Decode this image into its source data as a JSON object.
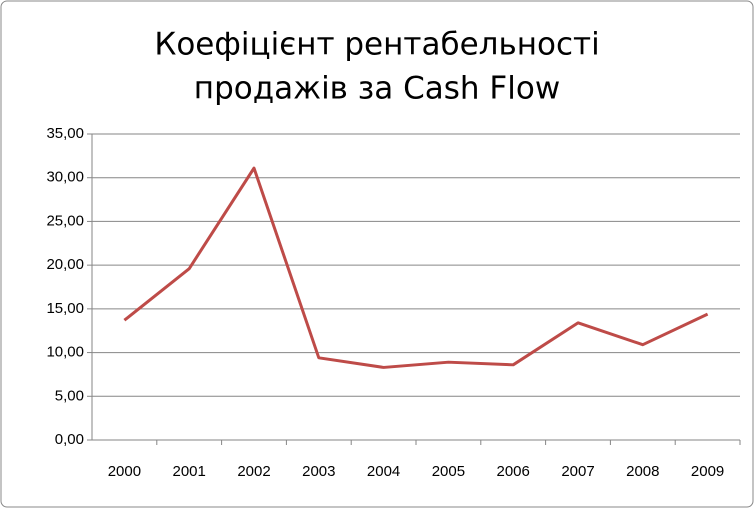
{
  "chart_data": {
    "type": "line",
    "title": [
      "Коефіцієнт  рентабельності",
      "продажів за Cash Flow"
    ],
    "categories": [
      "2000",
      "2001",
      "2002",
      "2003",
      "2004",
      "2005",
      "2006",
      "2007",
      "2008",
      "2009"
    ],
    "series": [
      {
        "color": "#be4b48",
        "values": [
          13.7,
          19.6,
          31.1,
          9.4,
          8.3,
          8.9,
          8.6,
          13.4,
          10.9,
          14.4
        ]
      }
    ],
    "ylim": [
      0,
      35
    ],
    "yticks": [
      {
        "value": 0,
        "label": "0,00"
      },
      {
        "value": 5,
        "label": "5,00"
      },
      {
        "value": 10,
        "label": "10,00"
      },
      {
        "value": 15,
        "label": "15,00"
      },
      {
        "value": 20,
        "label": "20,00"
      },
      {
        "value": 25,
        "label": "25,00"
      },
      {
        "value": 30,
        "label": "30,00"
      },
      {
        "value": 35,
        "label": "35,00"
      }
    ],
    "grid": true
  }
}
